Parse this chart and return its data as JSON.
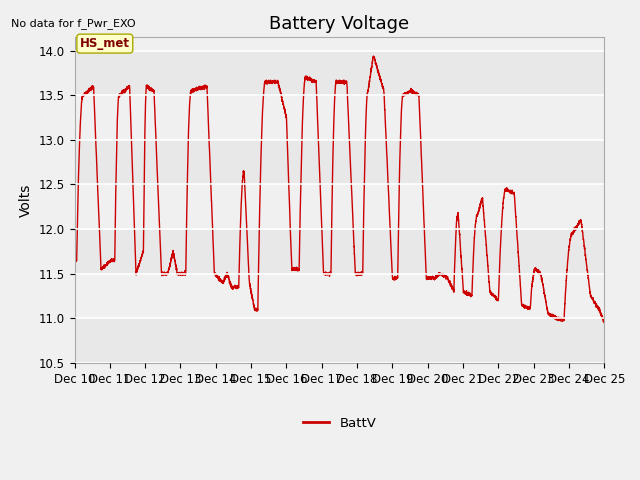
{
  "title": "Battery Voltage",
  "top_left_text": "No data for f_Pwr_EXO",
  "ylabel": "Volts",
  "legend_label": "BattV",
  "line_color": "#cc0000",
  "annotation_label": "HS_met",
  "annotation_bg": "#ffffcc",
  "annotation_border": "#aaa800",
  "annotation_text_color": "#800000",
  "ylim": [
    10.5,
    14.15
  ],
  "yticks": [
    10.5,
    11.0,
    11.5,
    12.0,
    12.5,
    13.0,
    13.5,
    14.0
  ],
  "band_colors": [
    "#e8e8e8",
    "#f0f0f0"
  ],
  "bg_color": "#f0f0f0",
  "title_fontsize": 13,
  "label_fontsize": 10,
  "tick_fontsize": 8.5,
  "xticklabels": [
    "Dec 10",
    "Dec 11",
    "Dec 12",
    "Dec 13",
    "Dec 14",
    "Dec 15",
    "Dec 16",
    "Dec 17",
    "Dec 18",
    "Dec 19",
    "Dec 20",
    "Dec 21",
    "Dec 22",
    "Dec 23",
    "Dec 24",
    "Dec 25"
  ]
}
